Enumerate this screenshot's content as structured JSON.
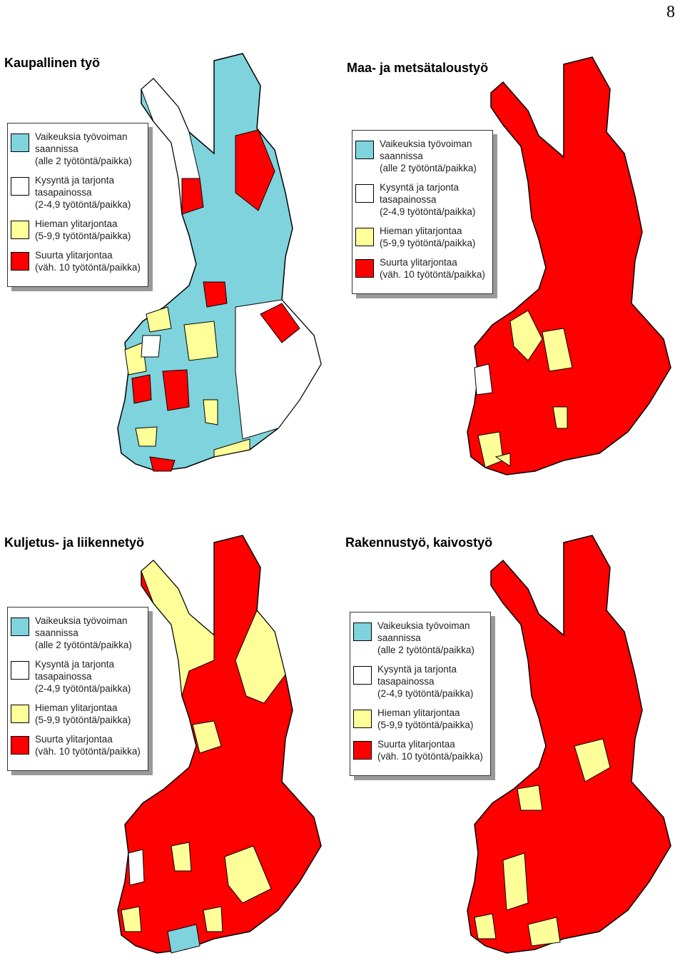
{
  "page_number": "8",
  "maps": [
    {
      "title": "Kaupallinen työ",
      "legend": [
        {
          "color": "#7fd3dc",
          "lines": [
            "Vaikeuksia työvoiman",
            "saannissa",
            "(alle 2 työtöntä/paikka)"
          ]
        },
        {
          "color": "#ffffff",
          "lines": [
            "Kysyntä ja tarjonta",
            "tasapainossa",
            "(2-4,9 työtöntä/paikka)"
          ]
        },
        {
          "color": "#ffff99",
          "lines": [
            "Hieman ylitarjontaa",
            "(5-9,9 työtöntä/paikka)"
          ]
        },
        {
          "color": "#ff0000",
          "lines": [
            "Suurta ylitarjontaa",
            "(väh. 10 työtöntä/paikka)"
          ]
        }
      ]
    },
    {
      "title": "Maa- ja metsätaloustyö",
      "legend": [
        {
          "color": "#7fd3dc",
          "lines": [
            "Vaikeuksia työvoiman",
            "saannissa",
            "(alle 2 työtöntä/paikka)"
          ]
        },
        {
          "color": "#ffffff",
          "lines": [
            "Kysyntä ja tarjonta",
            "tasapainossa",
            "(2-4,9 työtöntä/paikka)"
          ]
        },
        {
          "color": "#ffff99",
          "lines": [
            "Hieman ylitarjontaa",
            "(5-9,9 työtöntä/paikka)"
          ]
        },
        {
          "color": "#ff0000",
          "lines": [
            "Suurta ylitarjontaa",
            "(väh. 10 työtöntä/paikka)"
          ]
        }
      ]
    },
    {
      "title": "Kuljetus- ja liikennetyö",
      "legend": [
        {
          "color": "#7fd3dc",
          "lines": [
            "Vaikeuksia työvoiman",
            "saannissa",
            "(alle 2 työtöntä/paikka)"
          ]
        },
        {
          "color": "#ffffff",
          "lines": [
            "Kysyntä ja tarjonta",
            "tasapainossa",
            "(2-4,9 työtöntä/paikka)"
          ]
        },
        {
          "color": "#ffff99",
          "lines": [
            "Hieman ylitarjontaa",
            "(5-9,9 työtöntä/paikka)"
          ]
        },
        {
          "color": "#ff0000",
          "lines": [
            "Suurta ylitarjontaa",
            "(väh. 10 työtöntä/paikka)"
          ]
        }
      ]
    },
    {
      "title": "Rakennustyö, kaivostyö",
      "legend": [
        {
          "color": "#7fd3dc",
          "lines": [
            "Vaikeuksia työvoiman",
            "saannissa",
            "(alle 2 työtöntä/paikka)"
          ]
        },
        {
          "color": "#ffffff",
          "lines": [
            "Kysyntä ja tarjonta",
            "tasapainossa",
            "(2-4,9 työtöntä/paikka)"
          ]
        },
        {
          "color": "#ffff99",
          "lines": [
            "Hieman ylitarjontaa",
            "(5-9,9 työtöntä/paikka)"
          ]
        },
        {
          "color": "#ff0000",
          "lines": [
            "Suurta ylitarjontaa",
            "(väh. 10 työtöntä/paikka)"
          ]
        }
      ]
    }
  ]
}
